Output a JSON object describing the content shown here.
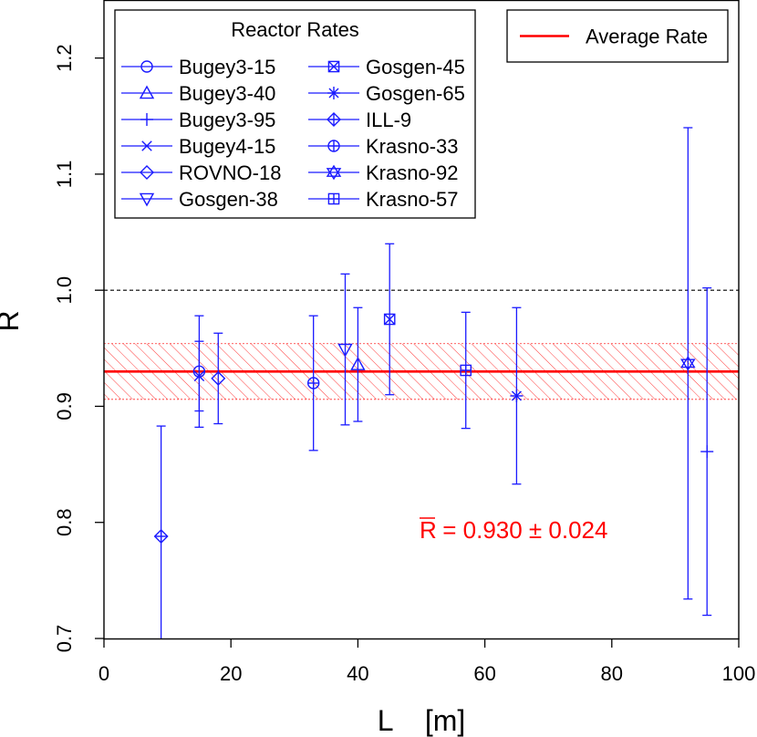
{
  "chart_data": {
    "type": "scatter",
    "xlabel": "L    [m]",
    "ylabel": "R",
    "xlim": [
      0,
      100
    ],
    "ylim": [
      0.7,
      1.25
    ],
    "xticks": [
      0,
      20,
      40,
      60,
      80,
      100
    ],
    "xtick_labels": [
      "0",
      "20",
      "40",
      "60",
      "80",
      "100"
    ],
    "yticks": [
      0.7,
      0.8,
      0.9,
      1.0,
      1.1,
      1.2
    ],
    "ytick_labels": [
      "0.7",
      "0.8",
      "0.9",
      "1.0",
      "1.1",
      "1.2"
    ],
    "reference_line": 1.0,
    "average": {
      "value": 0.93,
      "band": [
        0.906,
        0.954
      ]
    },
    "annotation": {
      "prefix": "R",
      "text": " = 0.930 ± 0.024",
      "x": 50,
      "y": 0.788
    },
    "legend_reactor": {
      "title": "Reactor Rates",
      "position": "top-left"
    },
    "legend_average": {
      "label": "Average Rate",
      "position": "top-right"
    },
    "series": [
      {
        "name": "Bugey3-15",
        "marker": "circle",
        "x": 15,
        "y": 0.93,
        "lo": 0.882,
        "hi": 0.978
      },
      {
        "name": "Bugey3-40",
        "marker": "triangle-up",
        "x": 40,
        "y": 0.936,
        "lo": 0.887,
        "hi": 0.985
      },
      {
        "name": "Bugey3-95",
        "marker": "plus",
        "x": 95,
        "y": 0.861,
        "lo": 0.72,
        "hi": 1.002
      },
      {
        "name": "Bugey4-15",
        "marker": "x",
        "x": 15,
        "y": 0.926,
        "lo": 0.896,
        "hi": 0.956
      },
      {
        "name": "ROVNO-18",
        "marker": "diamond",
        "x": 18,
        "y": 0.924,
        "lo": 0.885,
        "hi": 0.963
      },
      {
        "name": "Gosgen-38",
        "marker": "triangle-down",
        "x": 38,
        "y": 0.949,
        "lo": 0.884,
        "hi": 1.014
      },
      {
        "name": "Gosgen-45",
        "marker": "square-x",
        "x": 45,
        "y": 0.975,
        "lo": 0.91,
        "hi": 1.04
      },
      {
        "name": "Gosgen-65",
        "marker": "asterisk",
        "x": 65,
        "y": 0.909,
        "lo": 0.833,
        "hi": 0.985
      },
      {
        "name": "ILL-9",
        "marker": "diamond-plus",
        "x": 9,
        "y": 0.788,
        "lo": 0.693,
        "hi": 0.883
      },
      {
        "name": "Krasno-33",
        "marker": "circle-plus",
        "x": 33,
        "y": 0.92,
        "lo": 0.862,
        "hi": 0.978
      },
      {
        "name": "Krasno-92",
        "marker": "star-of-david",
        "x": 92,
        "y": 0.937,
        "lo": 0.734,
        "hi": 1.14
      },
      {
        "name": "Krasno-57",
        "marker": "square-plus",
        "x": 57,
        "y": 0.931,
        "lo": 0.881,
        "hi": 0.981
      }
    ],
    "colors": {
      "points": "#1a1aff",
      "average": "#ff0000",
      "band": "#ff2a2a",
      "reference": "#000000",
      "axis": "#000000"
    }
  }
}
